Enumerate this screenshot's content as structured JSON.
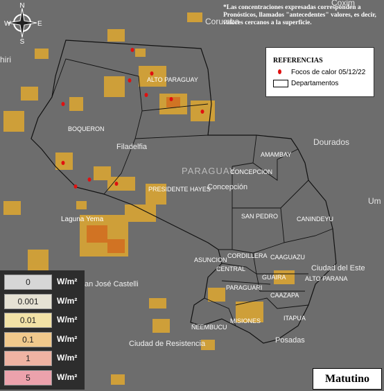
{
  "compass": {
    "n": "N",
    "s": "S",
    "w": "W",
    "e": "E"
  },
  "note": "*Las concentraciones expresadas corresponden a Pronósticos, llamados \"antecedentes\" valores, es decir, valores cercanos a la superficie.",
  "legend": {
    "title": "REFERENCIAS",
    "items": [
      "Focos de calor 05/12/22",
      "Departamentos"
    ]
  },
  "map_labels": {
    "cities": [
      "Corumba",
      "Coxim",
      "hiri",
      "Dourados",
      "Um",
      "Filadelfia",
      "Laguna Yema",
      "an José Castelli",
      "Ciudad de Resistencia",
      "Posadas",
      "Ciudad del Este",
      "Concepción",
      "PARAGUAY",
      "ASUNCION"
    ],
    "departments": [
      "ALTO PARAGUAY",
      "BOQUERON",
      "PRESIDENTE HAYES",
      "AMAMBAY",
      "CONCEPCION",
      "SAN PEDRO",
      "CANINDEYU",
      "CORDILLERA",
      "CAAGUAZU",
      "CENTRAL",
      "GUAIRA",
      "ALTO PARANA",
      "PARAGUARI",
      "CAAZAPA",
      "MISIONES",
      "ITAPUA",
      "ÑEEMBUCU"
    ]
  },
  "scale": {
    "items": [
      {
        "value": "0",
        "unit": "W/m²"
      },
      {
        "value": "0.001",
        "unit": "W/m²"
      },
      {
        "value": "0.01",
        "unit": "W/m²"
      },
      {
        "value": "0.1",
        "unit": "W/m²"
      },
      {
        "value": "1",
        "unit": "W/m²"
      },
      {
        "value": "5",
        "unit": "W/m²"
      }
    ]
  },
  "period": "Matutino"
}
